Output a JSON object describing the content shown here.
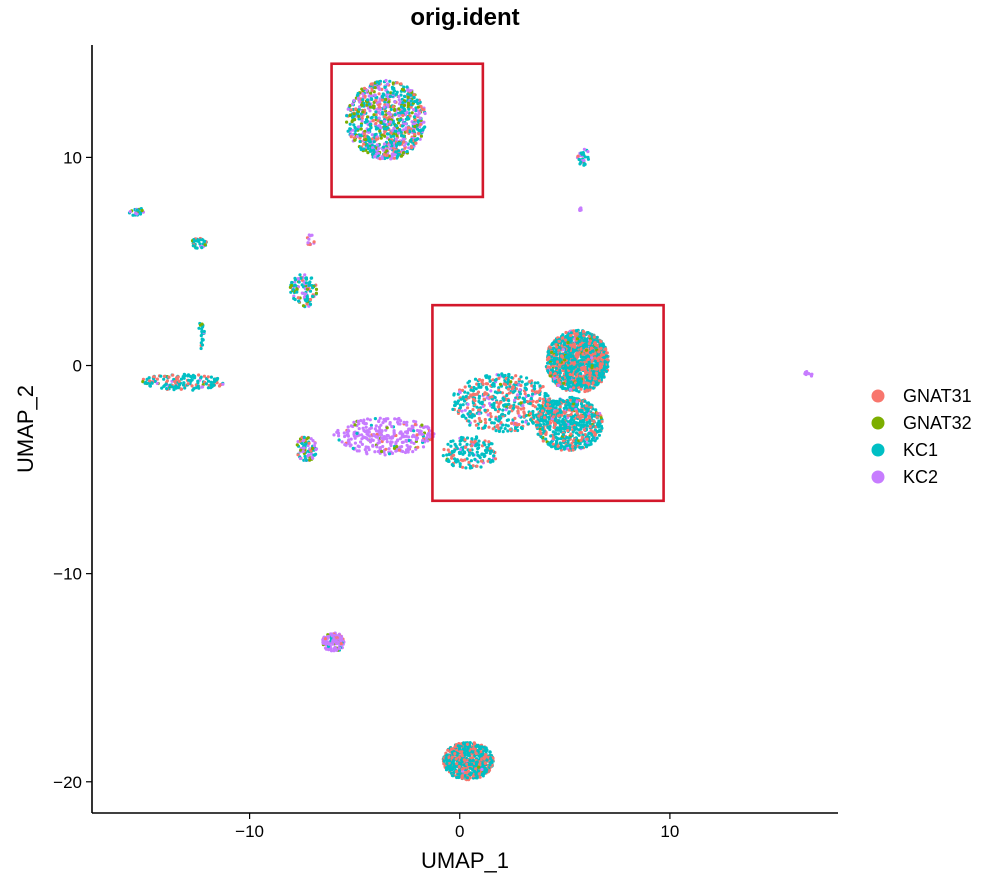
{
  "chart_data": {
    "type": "scatter",
    "title": "orig.ident",
    "xlabel": "UMAP_1",
    "ylabel": "UMAP_2",
    "xlim": [
      -17.5,
      18
    ],
    "ylim": [
      -21.5,
      15.4
    ],
    "xticks": [
      -10,
      0,
      10
    ],
    "yticks": [
      -20,
      -10,
      0,
      10
    ],
    "xtick_labels": [
      "−10",
      "0",
      "10"
    ],
    "ytick_labels": [
      "−20",
      "−10",
      "0",
      "10"
    ],
    "grid": false,
    "legend_position": "right",
    "series": [
      {
        "name": "GNAT31",
        "color": "#F8766D"
      },
      {
        "name": "GNAT32",
        "color": "#7CAE00"
      },
      {
        "name": "KC1",
        "color": "#00BFC4"
      },
      {
        "name": "KC2",
        "color": "#C77CFF"
      }
    ],
    "clusters": [
      {
        "cx": -3.5,
        "cy": 11.8,
        "rx": 1.9,
        "ry": 1.9,
        "n": 900,
        "weights": [
          0.15,
          0.18,
          0.4,
          0.27
        ]
      },
      {
        "cx": 5.6,
        "cy": 0.2,
        "rx": 1.5,
        "ry": 1.5,
        "n": 1300,
        "weights": [
          0.35,
          0.03,
          0.6,
          0.02
        ]
      },
      {
        "cx": 5.2,
        "cy": -2.8,
        "rx": 1.6,
        "ry": 1.3,
        "n": 700,
        "weights": [
          0.25,
          0.02,
          0.7,
          0.03
        ]
      },
      {
        "cx": 2.0,
        "cy": -1.8,
        "rx": 2.4,
        "ry": 1.4,
        "n": 500,
        "weights": [
          0.35,
          0.02,
          0.55,
          0.08
        ]
      },
      {
        "cx": 0.5,
        "cy": -4.2,
        "rx": 1.3,
        "ry": 0.8,
        "n": 160,
        "weights": [
          0.25,
          0.02,
          0.68,
          0.05
        ]
      },
      {
        "cx": 0.4,
        "cy": -19.0,
        "rx": 1.2,
        "ry": 0.9,
        "n": 700,
        "weights": [
          0.35,
          0.02,
          0.61,
          0.02
        ]
      },
      {
        "cx": -3.6,
        "cy": -3.4,
        "rx": 2.4,
        "ry": 0.9,
        "n": 320,
        "weights": [
          0.05,
          0.05,
          0.05,
          0.85
        ]
      },
      {
        "cx": -7.3,
        "cy": -4.0,
        "rx": 0.5,
        "ry": 0.6,
        "n": 90,
        "weights": [
          0.15,
          0.1,
          0.35,
          0.4
        ]
      },
      {
        "cx": -6.0,
        "cy": -13.3,
        "rx": 0.55,
        "ry": 0.45,
        "n": 110,
        "weights": [
          0.1,
          0.05,
          0.05,
          0.8
        ]
      },
      {
        "cx": -7.4,
        "cy": 3.6,
        "rx": 0.7,
        "ry": 0.8,
        "n": 110,
        "weights": [
          0.1,
          0.2,
          0.45,
          0.25
        ]
      },
      {
        "cx": -12.4,
        "cy": 5.9,
        "rx": 0.35,
        "ry": 0.3,
        "n": 35,
        "weights": [
          0.1,
          0.1,
          0.7,
          0.1
        ]
      },
      {
        "cx": -7.1,
        "cy": 6.0,
        "rx": 0.2,
        "ry": 0.3,
        "n": 15,
        "weights": [
          0.2,
          0.1,
          0.2,
          0.5
        ]
      },
      {
        "cx": -13.2,
        "cy": -0.8,
        "rx": 2.0,
        "ry": 0.4,
        "n": 160,
        "weights": [
          0.25,
          0.05,
          0.65,
          0.05
        ]
      },
      {
        "cx": 5.9,
        "cy": 10.0,
        "rx": 0.3,
        "ry": 0.4,
        "n": 35,
        "weights": [
          0.1,
          0.05,
          0.35,
          0.5
        ]
      },
      {
        "cx": -15.4,
        "cy": 7.4,
        "rx": 0.35,
        "ry": 0.2,
        "n": 22,
        "weights": [
          0.1,
          0.3,
          0.5,
          0.1
        ]
      },
      {
        "cx": 16.6,
        "cy": -0.4,
        "rx": 0.2,
        "ry": 0.15,
        "n": 8,
        "weights": [
          0.0,
          0.0,
          0.0,
          1.0
        ]
      },
      {
        "cx": 5.8,
        "cy": 7.5,
        "rx": 0.12,
        "ry": 0.08,
        "n": 6,
        "weights": [
          0.0,
          0.0,
          0.0,
          1.0
        ]
      },
      {
        "cx": -12.3,
        "cy": 1.5,
        "rx": 0.15,
        "ry": 0.7,
        "n": 20,
        "weights": [
          0.1,
          0.1,
          0.7,
          0.1
        ]
      }
    ],
    "highlight_boxes": [
      {
        "x0": -6.1,
        "x1": 1.1,
        "y0": 8.1,
        "y1": 14.5
      },
      {
        "x0": -1.3,
        "x1": 9.7,
        "y0": -6.5,
        "y1": 2.9
      }
    ]
  }
}
